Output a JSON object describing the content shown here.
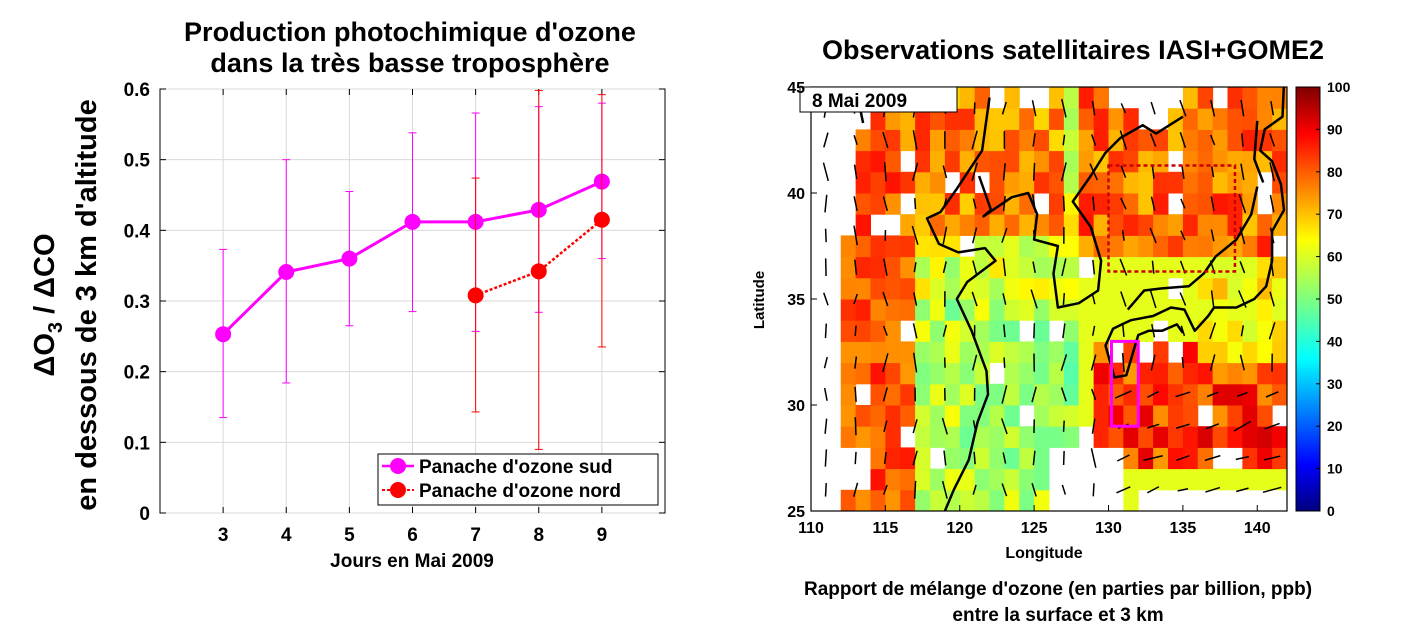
{
  "chart_data": [
    {
      "type": "line",
      "title": [
        "Production photochimique d'ozone",
        "dans la très basse troposphère"
      ],
      "xlabel": "Jours en Mai 2009",
      "ylabel_parts": {
        "delta": "Δ",
        "o3_main": "O",
        "o3_sub": "3",
        "sep": " / ",
        "co": "ΔCO",
        "line2": "en dessous de 3 km d'altitude"
      },
      "xlim": [
        2,
        10
      ],
      "ylim": [
        0,
        0.6
      ],
      "xticks": [
        "3",
        "4",
        "5",
        "6",
        "7",
        "8",
        "9"
      ],
      "xtick_values": [
        3,
        4,
        5,
        6,
        7,
        8,
        9
      ],
      "yticks": [
        "0",
        "0.1",
        "0.2",
        "0.3",
        "0.4",
        "0.5",
        "0.6"
      ],
      "ytick_values": [
        0,
        0.1,
        0.2,
        0.3,
        0.4,
        0.5,
        0.6
      ],
      "grid": true,
      "legend_position": "bottom-right",
      "series": [
        {
          "name": "Panache d'ozone sud",
          "color": "#ff00ff",
          "line_style": "solid",
          "x": [
            3,
            4,
            5,
            6,
            7,
            8,
            9
          ],
          "y": [
            0.253,
            0.341,
            0.36,
            0.412,
            0.412,
            0.429,
            0.469
          ],
          "err_low": [
            0.135,
            0.184,
            0.265,
            0.285,
            0.257,
            0.284,
            0.36
          ],
          "err_high": [
            0.373,
            0.5,
            0.455,
            0.538,
            0.566,
            0.575,
            0.58
          ]
        },
        {
          "name": "Panache d'ozone nord",
          "color": "#ff0000",
          "line_style": "dotted",
          "x": [
            7,
            8,
            9
          ],
          "y": [
            0.308,
            0.342,
            0.415
          ],
          "err_low": [
            0.143,
            0.09,
            0.235
          ],
          "err_high": [
            0.474,
            0.598,
            0.592
          ]
        }
      ]
    },
    {
      "type": "heatmap",
      "title": "Observations satellitaires IASI+GOME2",
      "date_label": "8 Mai 2009",
      "xlabel": "Longitude",
      "ylabel": "Latitude",
      "xlim": [
        110,
        142
      ],
      "ylim": [
        25,
        45
      ],
      "xticks": [
        "110",
        "115",
        "120",
        "125",
        "130",
        "135",
        "140"
      ],
      "xtick_values": [
        110,
        115,
        120,
        125,
        130,
        135,
        140
      ],
      "yticks": [
        "25",
        "30",
        "35",
        "40",
        "45"
      ],
      "ytick_values": [
        25,
        30,
        35,
        40,
        45
      ],
      "colorbar": {
        "range": [
          0,
          100
        ],
        "ticks": [
          "0",
          "10",
          "20",
          "30",
          "40",
          "50",
          "60",
          "70",
          "80",
          "90",
          "100"
        ],
        "colormap": "jet"
      },
      "caption": [
        "Rapport de mélange d'ozone (en parties par billion, ppb)",
        "entre la surface et 3 km"
      ],
      "regions": [
        {
          "name": "nord",
          "color": "#cc0000",
          "style": "dotted",
          "lon": [
            130,
            138.5
          ],
          "lat": [
            36.3,
            41.3
          ]
        },
        {
          "name": "sud",
          "color": "#ff00ff",
          "style": "solid",
          "lon": [
            130.2,
            132
          ],
          "lat": [
            29,
            33
          ]
        }
      ]
    }
  ]
}
